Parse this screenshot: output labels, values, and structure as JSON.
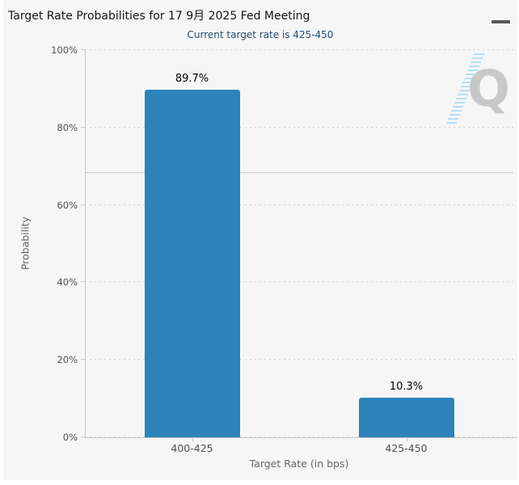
{
  "chart": {
    "menu_icon": "hamburger-icon",
    "watermark_letter": "Q"
  },
  "chart_data": {
    "type": "bar",
    "title": "Target Rate Probabilities for 17 9月 2025 Fed Meeting",
    "subtitle": "Current target rate is 425-450",
    "categories": [
      "400-425",
      "425-450"
    ],
    "values": [
      89.7,
      10.3
    ],
    "data_labels": [
      "89.7%",
      "10.3%"
    ],
    "xlabel": "Target Rate (in bps)",
    "ylabel": "Probability",
    "ylim": [
      0,
      100
    ],
    "yticks": [
      0,
      20,
      40,
      60,
      80,
      100
    ],
    "ytick_labels": [
      "0%",
      "20%",
      "40%",
      "60%",
      "80%",
      "100%"
    ],
    "grid": "horizontal-dotted",
    "legend": "none",
    "reference_line_y": 68.2
  },
  "colors": {
    "page_background": "#ffffff",
    "chart_background": "#f6f6f6",
    "bar": "#2d83ba",
    "title_text": "#151515",
    "subtitle_text": "#274b6d",
    "axis_line": "#c9c9c9",
    "gridline": "#d2d2d2",
    "tick_label": "#4f4f4f",
    "axis_title": "#666666",
    "data_label": "#000000",
    "menu_icon": "#58585a",
    "watermark_q": "#c6c8ca",
    "watermark_streak": "#a9dcf1"
  }
}
